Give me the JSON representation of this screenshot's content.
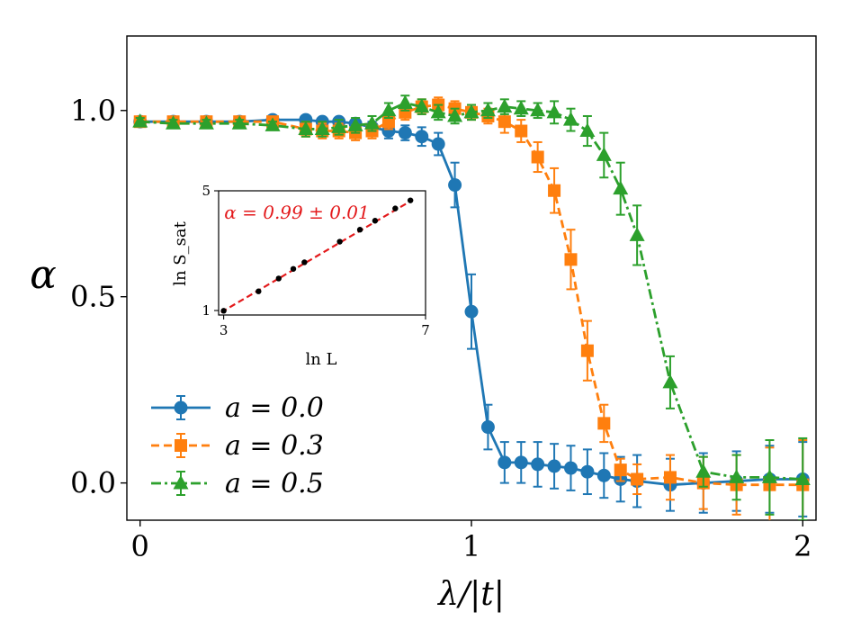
{
  "chart_data": {
    "type": "line",
    "xlabel": "λ/|t|",
    "ylabel": "α",
    "xlim": [
      -0.04,
      2.04
    ],
    "ylim": [
      -0.1,
      1.2
    ],
    "xticks": [
      0,
      1,
      2
    ],
    "xtick_labels": [
      "0",
      "1",
      "2"
    ],
    "yticks": [
      0.0,
      0.5,
      1.0
    ],
    "ytick_labels": [
      "0.0",
      "0.5",
      "1.0"
    ],
    "grid": false,
    "legend_position": "lower-left",
    "series": [
      {
        "name": "a = 0.0",
        "legend_prefix": "a",
        "legend_value": "0.0",
        "color": "#1f77b4",
        "marker": "circle",
        "linestyle": "solid",
        "points": [
          {
            "x": 0.0,
            "y": 0.97,
            "err": 0.01
          },
          {
            "x": 0.1,
            "y": 0.97,
            "err": 0.01
          },
          {
            "x": 0.2,
            "y": 0.97,
            "err": 0.01
          },
          {
            "x": 0.3,
            "y": 0.97,
            "err": 0.01
          },
          {
            "x": 0.4,
            "y": 0.975,
            "err": 0.01
          },
          {
            "x": 0.5,
            "y": 0.975,
            "err": 0.01
          },
          {
            "x": 0.55,
            "y": 0.97,
            "err": 0.01
          },
          {
            "x": 0.6,
            "y": 0.97,
            "err": 0.01
          },
          {
            "x": 0.65,
            "y": 0.965,
            "err": 0.01
          },
          {
            "x": 0.7,
            "y": 0.955,
            "err": 0.015
          },
          {
            "x": 0.75,
            "y": 0.945,
            "err": 0.02
          },
          {
            "x": 0.8,
            "y": 0.94,
            "err": 0.02
          },
          {
            "x": 0.85,
            "y": 0.93,
            "err": 0.025
          },
          {
            "x": 0.9,
            "y": 0.91,
            "err": 0.03
          },
          {
            "x": 0.95,
            "y": 0.8,
            "err": 0.06
          },
          {
            "x": 1.0,
            "y": 0.46,
            "err": 0.1
          },
          {
            "x": 1.05,
            "y": 0.15,
            "err": 0.06
          },
          {
            "x": 1.1,
            "y": 0.055,
            "err": 0.055
          },
          {
            "x": 1.15,
            "y": 0.055,
            "err": 0.055
          },
          {
            "x": 1.2,
            "y": 0.05,
            "err": 0.06
          },
          {
            "x": 1.25,
            "y": 0.045,
            "err": 0.06
          },
          {
            "x": 1.3,
            "y": 0.04,
            "err": 0.06
          },
          {
            "x": 1.35,
            "y": 0.03,
            "err": 0.06
          },
          {
            "x": 1.4,
            "y": 0.02,
            "err": 0.06
          },
          {
            "x": 1.45,
            "y": 0.01,
            "err": 0.06
          },
          {
            "x": 1.5,
            "y": 0.005,
            "err": 0.07
          },
          {
            "x": 1.6,
            "y": -0.005,
            "err": 0.07
          },
          {
            "x": 1.7,
            "y": 0.0,
            "err": 0.08
          },
          {
            "x": 1.8,
            "y": 0.005,
            "err": 0.08
          },
          {
            "x": 1.9,
            "y": 0.01,
            "err": 0.09
          },
          {
            "x": 2.0,
            "y": 0.01,
            "err": 0.1
          }
        ]
      },
      {
        "name": "a = 0.3",
        "legend_prefix": "a",
        "legend_value": "0.3",
        "color": "#ff7f0e",
        "marker": "square",
        "linestyle": "dashed",
        "points": [
          {
            "x": 0.0,
            "y": 0.97,
            "err": 0.01
          },
          {
            "x": 0.1,
            "y": 0.97,
            "err": 0.01
          },
          {
            "x": 0.2,
            "y": 0.97,
            "err": 0.01
          },
          {
            "x": 0.3,
            "y": 0.97,
            "err": 0.01
          },
          {
            "x": 0.4,
            "y": 0.97,
            "err": 0.01
          },
          {
            "x": 0.5,
            "y": 0.95,
            "err": 0.02
          },
          {
            "x": 0.55,
            "y": 0.945,
            "err": 0.02
          },
          {
            "x": 0.6,
            "y": 0.945,
            "err": 0.02
          },
          {
            "x": 0.65,
            "y": 0.94,
            "err": 0.02
          },
          {
            "x": 0.7,
            "y": 0.945,
            "err": 0.02
          },
          {
            "x": 0.75,
            "y": 0.97,
            "err": 0.02
          },
          {
            "x": 0.8,
            "y": 0.995,
            "err": 0.02
          },
          {
            "x": 0.85,
            "y": 1.01,
            "err": 0.02
          },
          {
            "x": 0.9,
            "y": 1.015,
            "err": 0.02
          },
          {
            "x": 0.95,
            "y": 1.005,
            "err": 0.02
          },
          {
            "x": 1.0,
            "y": 0.995,
            "err": 0.02
          },
          {
            "x": 1.05,
            "y": 0.985,
            "err": 0.02
          },
          {
            "x": 1.1,
            "y": 0.97,
            "err": 0.03
          },
          {
            "x": 1.15,
            "y": 0.945,
            "err": 0.03
          },
          {
            "x": 1.2,
            "y": 0.875,
            "err": 0.04
          },
          {
            "x": 1.25,
            "y": 0.785,
            "err": 0.06
          },
          {
            "x": 1.3,
            "y": 0.6,
            "err": 0.08
          },
          {
            "x": 1.35,
            "y": 0.355,
            "err": 0.08
          },
          {
            "x": 1.4,
            "y": 0.16,
            "err": 0.05
          },
          {
            "x": 1.45,
            "y": 0.035,
            "err": 0.03
          },
          {
            "x": 1.5,
            "y": 0.01,
            "err": 0.04
          },
          {
            "x": 1.6,
            "y": 0.015,
            "err": 0.06
          },
          {
            "x": 1.7,
            "y": 0.0,
            "err": 0.07
          },
          {
            "x": 1.8,
            "y": -0.005,
            "err": 0.08
          },
          {
            "x": 1.9,
            "y": -0.005,
            "err": 0.1
          },
          {
            "x": 2.0,
            "y": -0.005,
            "err": 0.12
          }
        ]
      },
      {
        "name": "a = 0.5",
        "legend_prefix": "a",
        "legend_value": "0.5",
        "color": "#2ca02c",
        "marker": "triangle",
        "linestyle": "dashdot",
        "points": [
          {
            "x": 0.0,
            "y": 0.97,
            "err": 0.01
          },
          {
            "x": 0.1,
            "y": 0.965,
            "err": 0.01
          },
          {
            "x": 0.2,
            "y": 0.965,
            "err": 0.01
          },
          {
            "x": 0.3,
            "y": 0.965,
            "err": 0.01
          },
          {
            "x": 0.4,
            "y": 0.96,
            "err": 0.01
          },
          {
            "x": 0.5,
            "y": 0.95,
            "err": 0.02
          },
          {
            "x": 0.55,
            "y": 0.95,
            "err": 0.02
          },
          {
            "x": 0.6,
            "y": 0.955,
            "err": 0.02
          },
          {
            "x": 0.65,
            "y": 0.96,
            "err": 0.02
          },
          {
            "x": 0.7,
            "y": 0.965,
            "err": 0.02
          },
          {
            "x": 0.75,
            "y": 1.0,
            "err": 0.02
          },
          {
            "x": 0.8,
            "y": 1.02,
            "err": 0.02
          },
          {
            "x": 0.85,
            "y": 1.01,
            "err": 0.02
          },
          {
            "x": 0.9,
            "y": 0.995,
            "err": 0.02
          },
          {
            "x": 0.95,
            "y": 0.985,
            "err": 0.02
          },
          {
            "x": 1.0,
            "y": 0.995,
            "err": 0.02
          },
          {
            "x": 1.05,
            "y": 1.0,
            "err": 0.02
          },
          {
            "x": 1.1,
            "y": 1.01,
            "err": 0.02
          },
          {
            "x": 1.15,
            "y": 1.005,
            "err": 0.02
          },
          {
            "x": 1.2,
            "y": 1.0,
            "err": 0.02
          },
          {
            "x": 1.25,
            "y": 0.995,
            "err": 0.03
          },
          {
            "x": 1.3,
            "y": 0.975,
            "err": 0.03
          },
          {
            "x": 1.35,
            "y": 0.945,
            "err": 0.04
          },
          {
            "x": 1.4,
            "y": 0.88,
            "err": 0.06
          },
          {
            "x": 1.45,
            "y": 0.79,
            "err": 0.07
          },
          {
            "x": 1.5,
            "y": 0.665,
            "err": 0.08
          },
          {
            "x": 1.6,
            "y": 0.27,
            "err": 0.07
          },
          {
            "x": 1.7,
            "y": 0.03,
            "err": 0.04
          },
          {
            "x": 1.8,
            "y": 0.015,
            "err": 0.06
          },
          {
            "x": 1.9,
            "y": 0.015,
            "err": 0.1
          },
          {
            "x": 2.0,
            "y": 0.01,
            "err": 0.11
          }
        ]
      }
    ],
    "inset": {
      "type": "scatter",
      "xlabel": "ln L",
      "ylabel": "ln S_sat",
      "xlim": [
        2.9,
        7.0
      ],
      "ylim": [
        0.85,
        5.0
      ],
      "xticks": [
        3,
        7
      ],
      "xtick_labels": [
        "3",
        "7"
      ],
      "yticks": [
        1,
        5
      ],
      "ytick_labels": [
        "1",
        "5"
      ],
      "annotation": "α = 0.99 ± 0.01",
      "annotation_color": "#e31a1c",
      "fit_line": {
        "slope": 0.99,
        "intercept": -1.98,
        "x_range": [
          2.95,
          6.75
        ],
        "color": "#e31a1c"
      },
      "points": [
        {
          "x": 3.0,
          "y": 0.99
        },
        {
          "x": 3.69,
          "y": 1.64
        },
        {
          "x": 4.09,
          "y": 2.07
        },
        {
          "x": 4.38,
          "y": 2.39
        },
        {
          "x": 4.6,
          "y": 2.61
        },
        {
          "x": 5.3,
          "y": 3.3
        },
        {
          "x": 5.7,
          "y": 3.7
        },
        {
          "x": 6.0,
          "y": 4.0
        },
        {
          "x": 6.4,
          "y": 4.41
        },
        {
          "x": 6.7,
          "y": 4.68
        }
      ]
    }
  }
}
